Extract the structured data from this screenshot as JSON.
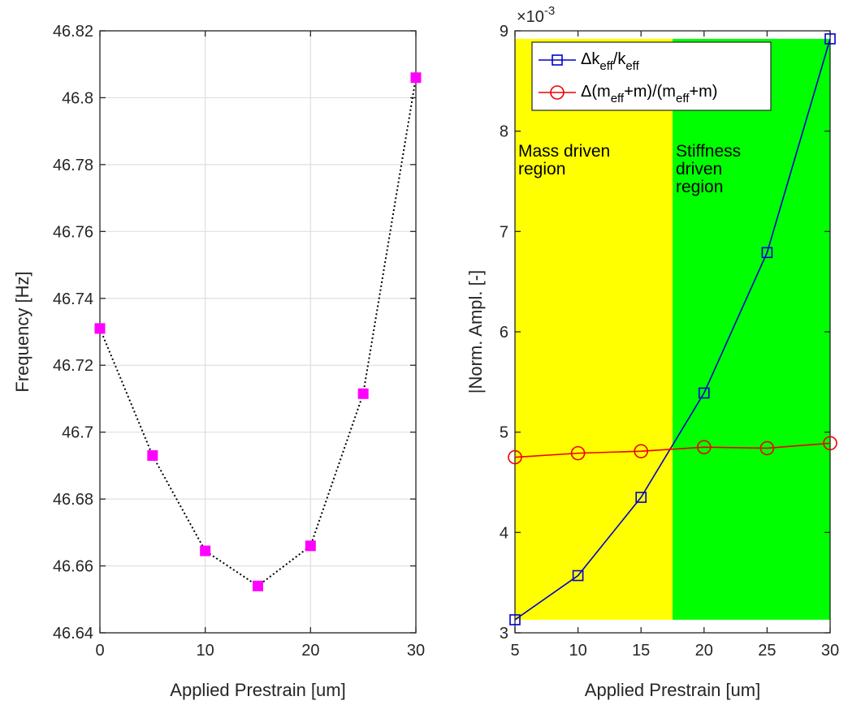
{
  "chart_data": [
    {
      "type": "line",
      "xlabel": "Applied Prestrain [um]",
      "ylabel": "Frequency [Hz]",
      "xlim": [
        0,
        30
      ],
      "ylim": [
        46.64,
        46.82
      ],
      "grid": true,
      "xticks": [
        "0",
        "10",
        "20",
        "30"
      ],
      "yticks": [
        "46.64",
        "46.66",
        "46.68",
        "46.7",
        "46.72",
        "46.74",
        "46.76",
        "46.78",
        "46.8",
        "46.82"
      ],
      "series": [
        {
          "x": [
            0,
            5,
            10,
            15,
            20,
            25,
            30
          ],
          "y": [
            46.731,
            46.693,
            46.6645,
            46.654,
            46.666,
            46.7115,
            46.806
          ],
          "marker": "square-filled",
          "marker_color": "#ff00ff",
          "line_color": "#000000",
          "line_style": "dotted"
        }
      ]
    },
    {
      "type": "line",
      "xlabel": "Applied Prestrain [um]",
      "ylabel": "|Norm. Ampl. [-]",
      "exponent_label": "×10",
      "exponent_power": "-3",
      "xlim": [
        5,
        30
      ],
      "ylim": [
        3,
        9
      ],
      "grid": false,
      "xticks": [
        "5",
        "10",
        "15",
        "20",
        "25",
        "30"
      ],
      "yticks": [
        "3",
        "4",
        "5",
        "6",
        "7",
        "8",
        "9"
      ],
      "legend_position": "top",
      "regions": [
        {
          "label_lines": [
            "Mass driven",
            "region"
          ],
          "x_from": 5,
          "x_to": 17.5,
          "color": "#ffff00"
        },
        {
          "label_lines": [
            "Stiffness",
            "driven",
            "region"
          ],
          "x_from": 17.5,
          "x_to": 30,
          "color": "#00ff00"
        }
      ],
      "series": [
        {
          "legend_parts": {
            "pre": "Δk",
            "sub1": "eff",
            "mid": "/k",
            "sub2": "eff",
            "post": ""
          },
          "x": [
            5,
            10,
            15,
            20,
            25,
            30
          ],
          "y": [
            3.13,
            3.57,
            4.35,
            5.39,
            6.79,
            8.92
          ],
          "color": "#0000cc",
          "marker": "square"
        },
        {
          "legend_parts": {
            "pre": "Δ(m",
            "sub1": "eff",
            "mid": "+m)/(m",
            "sub2": "eff",
            "post": "+m)"
          },
          "x": [
            5,
            10,
            15,
            20,
            25,
            30
          ],
          "y": [
            4.75,
            4.79,
            4.81,
            4.85,
            4.84,
            4.89
          ],
          "color": "#ee0000",
          "marker": "circle"
        }
      ]
    }
  ]
}
